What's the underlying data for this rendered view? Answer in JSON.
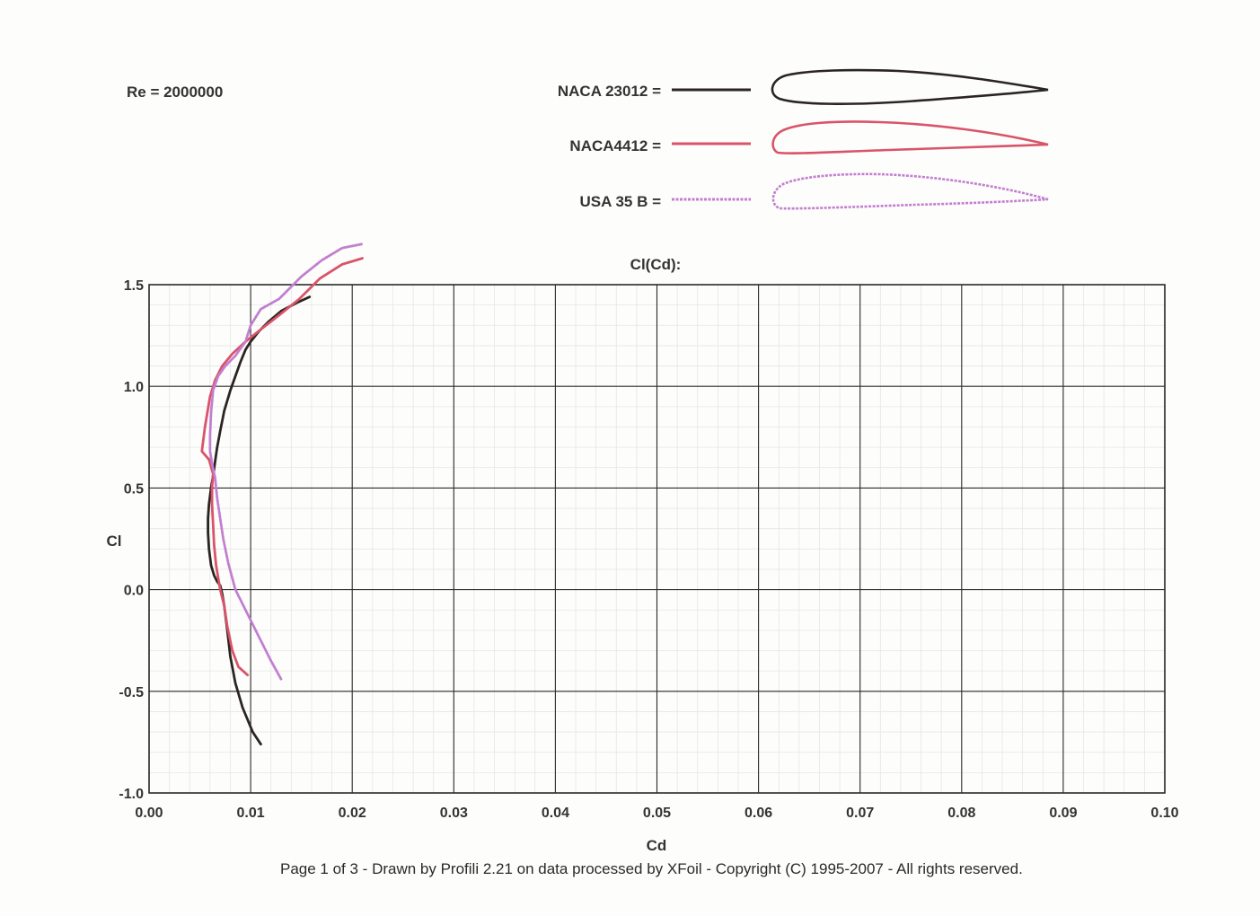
{
  "reynolds_label": "Re = 2000000",
  "footer_text": "Page 1 of 3   -   Drawn by Profili 2.21 on data processed by  XFoil - Copyright (C) 1995-2007 - All rights reserved.",
  "legend": [
    {
      "label": "NACA 23012 =",
      "color": "#2b2522",
      "profile": "naca23012"
    },
    {
      "label": "NACA4412 =",
      "color": "#d9546a",
      "profile": "naca4412"
    },
    {
      "label": "USA 35 B =",
      "color": "#c27fd0",
      "profile": "usa35b"
    }
  ],
  "chart_data": {
    "type": "line",
    "title": "Cl(Cd):",
    "xlabel": "Cd",
    "ylabel": "Cl",
    "xlim": [
      0,
      0.1
    ],
    "ylim": [
      -1.0,
      1.5
    ],
    "xticks": [
      "0.00",
      "0.01",
      "0.02",
      "0.03",
      "0.04",
      "0.05",
      "0.06",
      "0.07",
      "0.08",
      "0.09",
      "0.10"
    ],
    "yticks": [
      "1.5",
      "1.0",
      "0.5",
      "0.0",
      "-0.5",
      "-1.0"
    ],
    "grid": true,
    "series": [
      {
        "name": "NACA 23012",
        "color": "#2b2522",
        "x": [
          0.011,
          0.0102,
          0.0092,
          0.0085,
          0.008,
          0.0077,
          0.0074,
          0.0072,
          0.007,
          0.0067,
          0.0064,
          0.0061,
          0.0059,
          0.0058,
          0.0058,
          0.0059,
          0.0061,
          0.0063,
          0.0065,
          0.0067,
          0.007,
          0.0074,
          0.008,
          0.0085,
          0.009,
          0.0095,
          0.01,
          0.0108,
          0.0118,
          0.013,
          0.0145,
          0.0158
        ],
        "y": [
          -0.76,
          -0.7,
          -0.58,
          -0.46,
          -0.33,
          -0.2,
          -0.08,
          -0.02,
          0.02,
          0.04,
          0.07,
          0.12,
          0.2,
          0.28,
          0.35,
          0.42,
          0.5,
          0.56,
          0.63,
          0.7,
          0.78,
          0.88,
          0.98,
          1.05,
          1.12,
          1.18,
          1.22,
          1.27,
          1.32,
          1.37,
          1.41,
          1.44
        ]
      },
      {
        "name": "NACA4412",
        "color": "#d9546a",
        "x": [
          0.0097,
          0.0088,
          0.0082,
          0.0077,
          0.0074,
          0.007,
          0.0066,
          0.0064,
          0.0063,
          0.0062,
          0.0062,
          0.0063,
          0.0059,
          0.0052,
          0.0055,
          0.006,
          0.0065,
          0.0072,
          0.0082,
          0.0095,
          0.011,
          0.0128,
          0.0148,
          0.0168,
          0.019,
          0.021
        ],
        "y": [
          -0.42,
          -0.38,
          -0.3,
          -0.18,
          -0.08,
          0.0,
          0.12,
          0.22,
          0.32,
          0.42,
          0.5,
          0.57,
          0.64,
          0.68,
          0.8,
          0.95,
          1.03,
          1.1,
          1.16,
          1.22,
          1.28,
          1.35,
          1.43,
          1.53,
          1.6,
          1.63
        ]
      },
      {
        "name": "USA 35 B",
        "color": "#c27fd0",
        "x": [
          0.013,
          0.012,
          0.0108,
          0.0095,
          0.0085,
          0.0078,
          0.0073,
          0.007,
          0.0067,
          0.0065,
          0.0062,
          0.006,
          0.006,
          0.0061,
          0.0063,
          0.0068,
          0.0075,
          0.0085,
          0.0095,
          0.01,
          0.011,
          0.0128,
          0.015,
          0.017,
          0.019,
          0.021
        ],
        "y": [
          -0.44,
          -0.35,
          -0.23,
          -0.1,
          0.0,
          0.13,
          0.25,
          0.35,
          0.45,
          0.55,
          0.62,
          0.68,
          0.76,
          0.87,
          0.98,
          1.05,
          1.1,
          1.15,
          1.22,
          1.3,
          1.38,
          1.43,
          1.54,
          1.62,
          1.68,
          1.7
        ]
      }
    ]
  }
}
